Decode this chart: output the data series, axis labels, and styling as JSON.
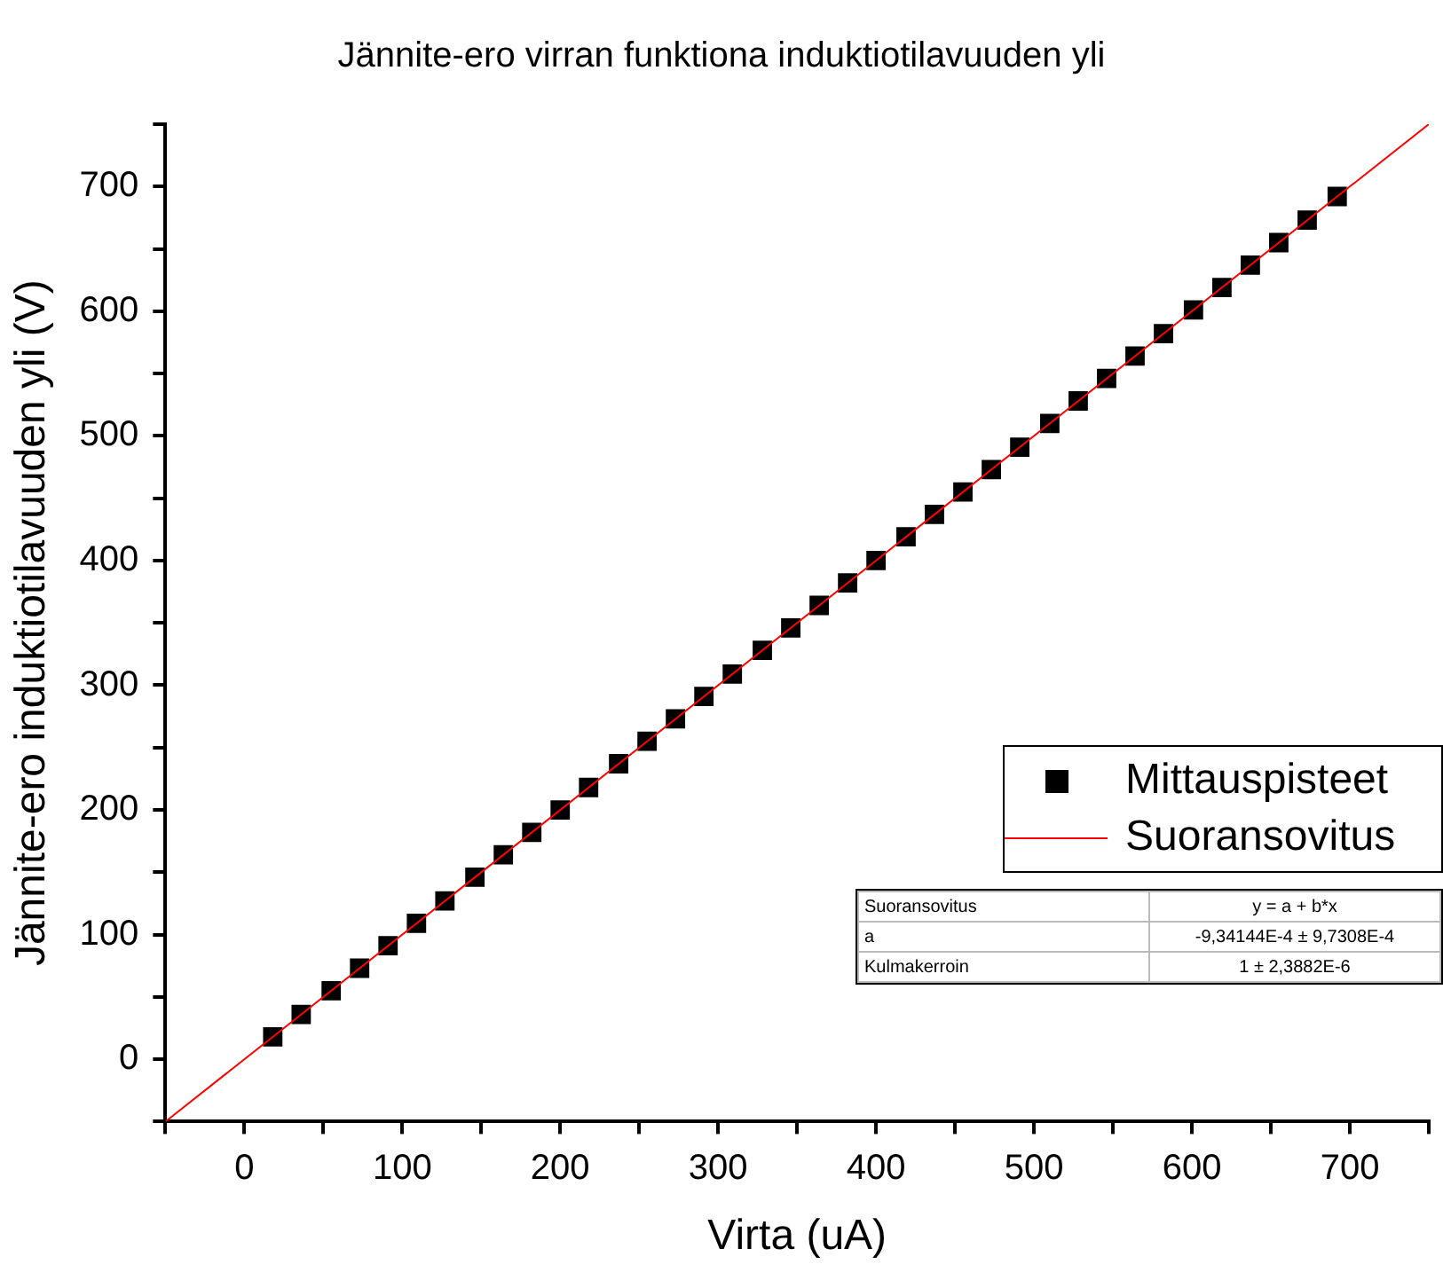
{
  "chart_data": {
    "type": "scatter",
    "title": "Jännite-ero virran funktiona induktiotilavuuden yli",
    "xlabel": "Virta (uA)",
    "ylabel": "Jännite-ero induktiotilavuuden yli (V)",
    "x": [
      18,
      36,
      55,
      73,
      91,
      109,
      127,
      146,
      164,
      182,
      200,
      218,
      237,
      255,
      273,
      291,
      309,
      328,
      346,
      364,
      382,
      400,
      419,
      437,
      455,
      473,
      491,
      510,
      528,
      546,
      564,
      582,
      601,
      619,
      637,
      655,
      673,
      692
    ],
    "series": [
      {
        "name": "Mittauspisteet",
        "marker": "square",
        "color": "#000000",
        "values": [
          18,
          36,
          55,
          73,
          91,
          109,
          127,
          146,
          164,
          182,
          200,
          218,
          237,
          255,
          273,
          291,
          309,
          328,
          346,
          364,
          382,
          400,
          419,
          437,
          455,
          473,
          491,
          510,
          528,
          546,
          564,
          582,
          601,
          619,
          637,
          655,
          673,
          692
        ]
      },
      {
        "name": "Suoransovitus",
        "type": "line",
        "marker": "none",
        "color": "#ff0000",
        "x": [
          -50,
          750
        ],
        "values": [
          -50,
          750
        ]
      }
    ],
    "xlim": [
      -50,
      750
    ],
    "ylim": [
      -50,
      750
    ],
    "xticks": [
      {
        "value": -50,
        "label": null
      },
      0,
      {
        "value": 50,
        "label": null
      },
      100,
      {
        "value": 150,
        "label": null
      },
      200,
      {
        "value": 250,
        "label": null
      },
      300,
      {
        "value": 350,
        "label": null
      },
      400,
      {
        "value": 450,
        "label": null
      },
      500,
      {
        "value": 550,
        "label": null
      },
      600,
      {
        "value": 650,
        "label": null
      },
      700,
      {
        "value": 750,
        "label": null
      }
    ],
    "yticks": [
      {
        "value": -50,
        "label": null
      },
      0,
      {
        "value": 50,
        "label": null
      },
      100,
      {
        "value": 150,
        "label": null
      },
      200,
      {
        "value": 250,
        "label": null
      },
      300,
      {
        "value": 350,
        "label": null
      },
      400,
      {
        "value": 450,
        "label": null
      },
      500,
      {
        "value": 550,
        "label": null
      },
      600,
      {
        "value": 650,
        "label": null
      },
      700,
      {
        "value": 750,
        "label": null
      }
    ],
    "grid": false,
    "legend": "right",
    "annotations": [
      "Suoransovitus",
      "y = a + b*x",
      "a",
      "-9,34144E-4 ± 9,7308E-4",
      "Kulmakerroin",
      "1 ± 2,3882E-6"
    ]
  }
}
